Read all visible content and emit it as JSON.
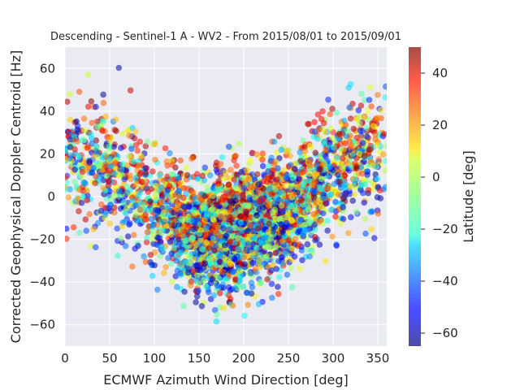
{
  "figure": {
    "title": "Descending - Sentinel-1 A - WV2 - From 2015/08/01 to 2015/09/01",
    "background": "#ffffff",
    "plot_background": "#eaeaf2",
    "grid_color": "#ffffff"
  },
  "chart_data": {
    "type": "scatter",
    "title": "Descending - Sentinel-1 A - WV2 - From 2015/08/01 to 2015/09/01",
    "xlabel": "ECMWF Azimuth Wind Direction [deg]",
    "ylabel": "Corrected Geophysical Doppler Centroid [Hz]",
    "xlim": [
      0,
      360
    ],
    "ylim": [
      -70,
      70
    ],
    "xticks": [
      0,
      50,
      100,
      150,
      200,
      250,
      300,
      350
    ],
    "yticks": [
      -60,
      -40,
      -20,
      0,
      20,
      40,
      60
    ],
    "grid": true,
    "point_count": 4000,
    "point_opacity": 0.55,
    "colormap": "jet",
    "trend": {
      "description_points": [
        {
          "x": 0,
          "y": 20
        },
        {
          "x": 50,
          "y": 14
        },
        {
          "x": 100,
          "y": -6
        },
        {
          "x": 150,
          "y": -18
        },
        {
          "x": 200,
          "y": -14
        },
        {
          "x": 250,
          "y": -6
        },
        {
          "x": 300,
          "y": 12
        },
        {
          "x": 350,
          "y": 22
        }
      ]
    },
    "colorbar": {
      "label": "Latitude [deg]",
      "range": [
        -65,
        50
      ],
      "ticks": [
        -60,
        -40,
        -20,
        0,
        20,
        40
      ]
    }
  }
}
